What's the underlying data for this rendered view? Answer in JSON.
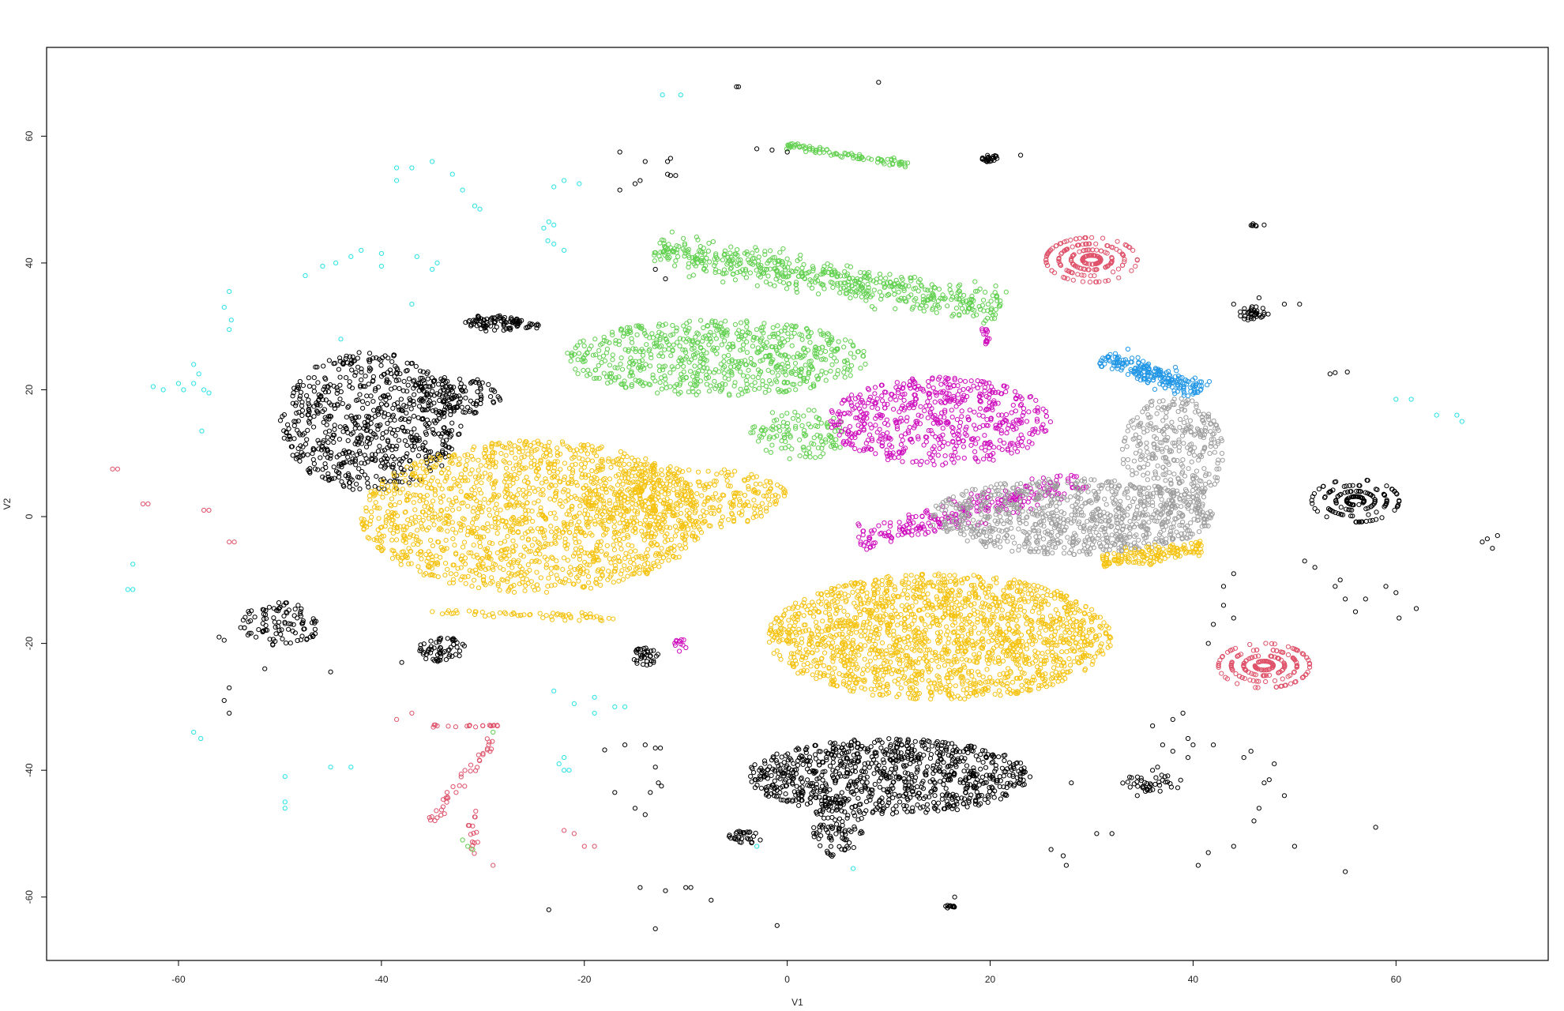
{
  "chart_data": {
    "type": "scatter",
    "title": "",
    "xlabel": "V1",
    "ylabel": "V2",
    "xlim": [
      -73,
      75
    ],
    "ylim": [
      -70,
      74
    ],
    "xticks": [
      -60,
      -40,
      -20,
      0,
      20,
      40,
      60
    ],
    "yticks": [
      60,
      40,
      20,
      0,
      -20,
      -40,
      -60
    ],
    "xtick_labels": [
      "-60",
      "-40",
      "-20",
      "0",
      "20",
      "40",
      "60"
    ],
    "ytick_labels": [
      "60",
      "40",
      "20",
      "0",
      "-20",
      "-40",
      "-60"
    ],
    "marker": "open-circle",
    "grid": false,
    "legend": "none",
    "colors": {
      "black": "#000000",
      "yellow": "#f5c20f",
      "green": "#61d04f",
      "magenta": "#cd0bbc",
      "gray": "#9e9e9e",
      "blue": "#2297e6",
      "red": "#df536b",
      "cyan": "#28e2e5"
    },
    "clusters": [
      {
        "color": "black",
        "kind": "blob",
        "cx": -41,
        "cy": 15,
        "rx": 9,
        "ry": 11,
        "n": 700
      },
      {
        "color": "black",
        "kind": "blob",
        "cx": -33,
        "cy": 19,
        "rx": 5,
        "ry": 3,
        "n": 120
      },
      {
        "color": "yellow",
        "kind": "blob",
        "cx": -25,
        "cy": 0,
        "rx": 17,
        "ry": 12,
        "n": 1600
      },
      {
        "color": "yellow",
        "kind": "blob",
        "cx": -10,
        "cy": 3,
        "rx": 10,
        "ry": 5,
        "n": 350
      },
      {
        "color": "green",
        "kind": "blob",
        "cx": -7,
        "cy": 25,
        "rx": 15,
        "ry": 6,
        "n": 700
      },
      {
        "color": "green",
        "kind": "blob",
        "cx": 1,
        "cy": 13,
        "rx": 5,
        "ry": 4,
        "n": 120
      },
      {
        "color": "green",
        "kind": "band",
        "x0": -13,
        "y0": 42,
        "x1": 21,
        "y1": 33,
        "width": 4,
        "n": 550
      },
      {
        "color": "green",
        "kind": "band",
        "x0": 0,
        "y0": 58.5,
        "x1": 12,
        "y1": 55.5,
        "width": 0.8,
        "n": 90
      },
      {
        "color": "magenta",
        "kind": "blob",
        "cx": 15,
        "cy": 15,
        "rx": 11,
        "ry": 7,
        "n": 600
      },
      {
        "color": "magenta",
        "kind": "band",
        "x0": 7,
        "y0": -4,
        "x1": 29,
        "y1": 6,
        "width": 3,
        "n": 250
      },
      {
        "color": "gray",
        "kind": "blob",
        "cx": 28,
        "cy": 0,
        "rx": 14,
        "ry": 6,
        "n": 900
      },
      {
        "color": "gray",
        "kind": "blob",
        "cx": 38,
        "cy": 10,
        "rx": 5,
        "ry": 9,
        "n": 350
      },
      {
        "color": "blue",
        "kind": "band",
        "x0": 31,
        "y0": 25,
        "x1": 41,
        "y1": 20,
        "width": 2.5,
        "n": 220
      },
      {
        "color": "yellow",
        "kind": "blob",
        "cx": 15,
        "cy": -19,
        "rx": 17,
        "ry": 10,
        "n": 1800
      },
      {
        "color": "yellow",
        "kind": "band",
        "x0": 31,
        "y0": -7,
        "x1": 41,
        "y1": -5,
        "width": 2,
        "n": 150
      },
      {
        "color": "black",
        "kind": "blob",
        "cx": 10,
        "cy": -41,
        "rx": 14,
        "ry": 6,
        "n": 900
      },
      {
        "color": "black",
        "kind": "blob",
        "cx": 5,
        "cy": -49,
        "rx": 2.5,
        "ry": 5,
        "n": 100
      },
      {
        "color": "black",
        "kind": "blob",
        "cx": -29,
        "cy": 30.5,
        "rx": 3,
        "ry": 1.3,
        "n": 70
      },
      {
        "color": "black",
        "kind": "blob",
        "cx": -50,
        "cy": -17,
        "rx": 4,
        "ry": 3.5,
        "n": 100
      },
      {
        "color": "black",
        "kind": "blob",
        "cx": -34,
        "cy": -21,
        "rx": 2.5,
        "ry": 2,
        "n": 60
      },
      {
        "color": "black",
        "kind": "blob",
        "cx": -14,
        "cy": -22,
        "rx": 1.3,
        "ry": 1.5,
        "n": 35
      },
      {
        "color": "black",
        "kind": "blob",
        "cx": 20,
        "cy": 56.5,
        "rx": 0.8,
        "ry": 0.6,
        "n": 25
      },
      {
        "color": "black",
        "kind": "blob",
        "cx": 36,
        "cy": -42,
        "rx": 3,
        "ry": 1.5,
        "n": 40
      },
      {
        "color": "black",
        "kind": "blob",
        "cx": -4,
        "cy": -50.5,
        "rx": 1.8,
        "ry": 1,
        "n": 30
      },
      {
        "color": "black",
        "kind": "blob",
        "cx": 16,
        "cy": -61.5,
        "rx": 0.5,
        "ry": 0.3,
        "n": 12
      },
      {
        "color": "black",
        "kind": "blob",
        "cx": 46,
        "cy": 46,
        "rx": 0.3,
        "ry": 0.3,
        "n": 6
      },
      {
        "color": "red",
        "kind": "ring",
        "cx": 30,
        "cy": 40.5,
        "r": 4.5,
        "n": 220
      },
      {
        "color": "red",
        "kind": "ring",
        "cx": 47,
        "cy": -23.5,
        "r": 4.5,
        "n": 220
      },
      {
        "color": "black",
        "kind": "ring",
        "cx": 56,
        "cy": 2.5,
        "r": 4.3,
        "n": 160
      },
      {
        "color": "black",
        "kind": "ring",
        "cx": 46,
        "cy": 32,
        "r": 1.4,
        "n": 40
      },
      {
        "color": "red",
        "kind": "band",
        "x0": -29,
        "y0": -35,
        "x1": -35,
        "y1": -48,
        "width": 1,
        "n": 40
      },
      {
        "color": "red",
        "kind": "band",
        "x0": -35,
        "y0": -33,
        "x1": -28,
        "y1": -33,
        "width": 0.4,
        "n": 18
      },
      {
        "color": "red",
        "kind": "band",
        "x0": -31,
        "y0": -46,
        "x1": -31,
        "y1": -55,
        "width": 0.8,
        "n": 16
      },
      {
        "color": "black",
        "kind": "band",
        "x0": -29,
        "y0": 31,
        "x1": -24,
        "y1": 30,
        "width": 1,
        "n": 30
      },
      {
        "color": "yellow",
        "kind": "band",
        "x0": -35,
        "y0": -15,
        "x1": -17,
        "y1": -16,
        "width": 0.8,
        "n": 60
      },
      {
        "color": "magenta",
        "kind": "blob",
        "cx": -10.5,
        "cy": -20,
        "rx": 0.6,
        "ry": 1.5,
        "n": 12
      },
      {
        "color": "magenta",
        "kind": "blob",
        "cx": 19.5,
        "cy": 28.5,
        "rx": 0.5,
        "ry": 1.5,
        "n": 14
      }
    ],
    "scattered_points": [
      {
        "color": "cyan",
        "points": [
          [
            -12.3,
            66.5
          ],
          [
            -10.5,
            66.5
          ],
          [
            -38.5,
            55
          ],
          [
            -38.5,
            53
          ],
          [
            -37,
            55
          ],
          [
            -35,
            56
          ],
          [
            -33,
            54
          ],
          [
            -32,
            51.5
          ],
          [
            -30.8,
            49
          ],
          [
            -30.3,
            48.5
          ],
          [
            -22,
            53
          ],
          [
            -20.5,
            52.5
          ],
          [
            -23,
            52
          ],
          [
            -24,
            45.5
          ],
          [
            -23.5,
            46.5
          ],
          [
            -23,
            46
          ],
          [
            -23,
            43
          ],
          [
            -22,
            42
          ],
          [
            -23.6,
            43.5
          ],
          [
            -47.5,
            38
          ],
          [
            -45.8,
            39.5
          ],
          [
            -44.5,
            40
          ],
          [
            -43,
            41
          ],
          [
            -42,
            42
          ],
          [
            -40,
            41.5
          ],
          [
            -40,
            39.5
          ],
          [
            -36.5,
            41
          ],
          [
            -35,
            39
          ],
          [
            -34.5,
            40
          ],
          [
            -37,
            33.5
          ],
          [
            -55,
            35.5
          ],
          [
            -55.5,
            33
          ],
          [
            -55,
            29.5
          ],
          [
            -54.8,
            31
          ],
          [
            -58.5,
            24
          ],
          [
            -58,
            22.5
          ],
          [
            -62.5,
            20.5
          ],
          [
            -61.5,
            20
          ],
          [
            -60,
            21
          ],
          [
            -59.5,
            20
          ],
          [
            -58.5,
            21
          ],
          [
            -57.5,
            20
          ],
          [
            -57,
            19.5
          ],
          [
            -57.7,
            13.5
          ],
          [
            -44,
            28
          ],
          [
            -64.5,
            -7.5
          ],
          [
            -65,
            -11.5
          ],
          [
            -64.5,
            -11.5
          ],
          [
            -58.5,
            -34
          ],
          [
            -57.8,
            -35
          ],
          [
            -49.5,
            -41
          ],
          [
            -45,
            -39.5
          ],
          [
            -43,
            -39.5
          ],
          [
            -49.5,
            -45
          ],
          [
            -49.5,
            -46
          ],
          [
            -23,
            -27.5
          ],
          [
            -21,
            -29.5
          ],
          [
            -19,
            -28.5
          ],
          [
            -19,
            -31
          ],
          [
            -17,
            -30
          ],
          [
            -16,
            -30
          ],
          [
            -22,
            -38
          ],
          [
            -22,
            -40
          ],
          [
            -21.5,
            -40
          ],
          [
            -22.5,
            -39
          ],
          [
            60,
            18.5
          ],
          [
            61.5,
            18.5
          ],
          [
            64,
            16
          ],
          [
            66,
            16
          ],
          [
            66.5,
            15
          ],
          [
            -3,
            -52
          ],
          [
            6.5,
            -55.5
          ]
        ]
      },
      {
        "color": "red",
        "points": [
          [
            -66.5,
            7.5
          ],
          [
            -66,
            7.5
          ],
          [
            -63.5,
            2
          ],
          [
            -63,
            2
          ],
          [
            -57.5,
            1
          ],
          [
            -57,
            1
          ],
          [
            -55,
            -4
          ],
          [
            -54.5,
            -4
          ],
          [
            -38.5,
            -32
          ],
          [
            -37,
            -31
          ],
          [
            -34.5,
            -33
          ],
          [
            -22,
            -49.5
          ],
          [
            -21,
            -50
          ],
          [
            -20,
            -52
          ],
          [
            -19,
            -52
          ],
          [
            -29,
            -55
          ]
        ]
      },
      {
        "color": "black",
        "points": [
          [
            -5,
            67.8
          ],
          [
            -4.8,
            67.8
          ],
          [
            9,
            68.5
          ],
          [
            -16.5,
            57.5
          ],
          [
            -16.5,
            51.5
          ],
          [
            -14,
            56
          ],
          [
            -14.5,
            53
          ],
          [
            -15,
            52.5
          ],
          [
            -11.8,
            54
          ],
          [
            -11.5,
            53.8
          ],
          [
            -11,
            53.8
          ],
          [
            -11.8,
            56
          ],
          [
            -11.5,
            56.5
          ],
          [
            -3,
            58
          ],
          [
            -1.5,
            57.8
          ],
          [
            0,
            57.5
          ],
          [
            23,
            57
          ],
          [
            -13,
            39
          ],
          [
            -12,
            37.5
          ],
          [
            -55,
            -31
          ],
          [
            -55.5,
            -29
          ],
          [
            -51.5,
            -24
          ],
          [
            -55,
            -27
          ],
          [
            -55.5,
            -19.5
          ],
          [
            -56,
            -19
          ],
          [
            -45,
            -24.5
          ],
          [
            -38,
            -23
          ],
          [
            -18,
            -36.8
          ],
          [
            -16,
            -36
          ],
          [
            -14,
            -36
          ],
          [
            -13,
            -36.5
          ],
          [
            -12.5,
            -36.5
          ],
          [
            -13,
            -39.5
          ],
          [
            -12.7,
            -42
          ],
          [
            -12.4,
            -42.5
          ],
          [
            -14,
            -47
          ],
          [
            -15,
            -46
          ],
          [
            -17,
            -43.5
          ],
          [
            -13.5,
            -43.5
          ],
          [
            -14.5,
            -58.5
          ],
          [
            -12,
            -59
          ],
          [
            -10,
            -58.5
          ],
          [
            -9.5,
            -58.5
          ],
          [
            -7.5,
            -60.5
          ],
          [
            -13,
            -65
          ],
          [
            -23.5,
            -62
          ],
          [
            -1,
            -64.5
          ],
          [
            16.5,
            -60
          ],
          [
            26,
            -52.5
          ],
          [
            27.2,
            -53.5
          ],
          [
            27.5,
            -55
          ],
          [
            30.5,
            -50
          ],
          [
            32,
            -50
          ],
          [
            28,
            -42
          ],
          [
            34.5,
            -44
          ],
          [
            35.5,
            -43
          ],
          [
            36,
            -40
          ],
          [
            36.5,
            -39.5
          ],
          [
            36,
            -33
          ],
          [
            37,
            -36
          ],
          [
            38,
            -37
          ],
          [
            39.5,
            -38
          ],
          [
            40,
            -36
          ],
          [
            42,
            -36
          ],
          [
            38,
            -32
          ],
          [
            39,
            -31
          ],
          [
            41.5,
            -20
          ],
          [
            42,
            -17
          ],
          [
            43,
            -14
          ],
          [
            44,
            -16
          ],
          [
            39.5,
            -35
          ],
          [
            40.5,
            -55
          ],
          [
            41.5,
            -53
          ],
          [
            44,
            -52
          ],
          [
            46,
            -48
          ],
          [
            46.5,
            -46
          ],
          [
            47,
            -42
          ],
          [
            48,
            -39
          ],
          [
            49,
            -44
          ],
          [
            47.5,
            -41.5
          ],
          [
            45.7,
            -37
          ],
          [
            45,
            -38
          ],
          [
            51,
            -7
          ],
          [
            52,
            -8
          ],
          [
            54,
            -11
          ],
          [
            54.5,
            -10
          ],
          [
            55,
            -13
          ],
          [
            56,
            -15
          ],
          [
            57,
            -13
          ],
          [
            59,
            -11
          ],
          [
            60,
            -12
          ],
          [
            60.3,
            -16
          ],
          [
            62,
            -14.5
          ],
          [
            53.5,
            22.5
          ],
          [
            54,
            22.7
          ],
          [
            55.2,
            22.8
          ],
          [
            50.5,
            33.5
          ],
          [
            47,
            46
          ],
          [
            44,
            33.5
          ],
          [
            49,
            33.5
          ],
          [
            46.5,
            34.5
          ],
          [
            68.5,
            -4
          ],
          [
            69,
            -3.5
          ],
          [
            70,
            -3
          ],
          [
            69.5,
            -5
          ],
          [
            44,
            -9
          ],
          [
            43,
            -11
          ],
          [
            50,
            -52
          ],
          [
            55,
            -56
          ],
          [
            58,
            -49
          ]
        ]
      },
      {
        "color": "green",
        "points": [
          [
            -32,
            -51
          ],
          [
            -31.5,
            -52
          ],
          [
            -31,
            -52.5
          ],
          [
            -29,
            -34
          ]
        ]
      }
    ]
  }
}
